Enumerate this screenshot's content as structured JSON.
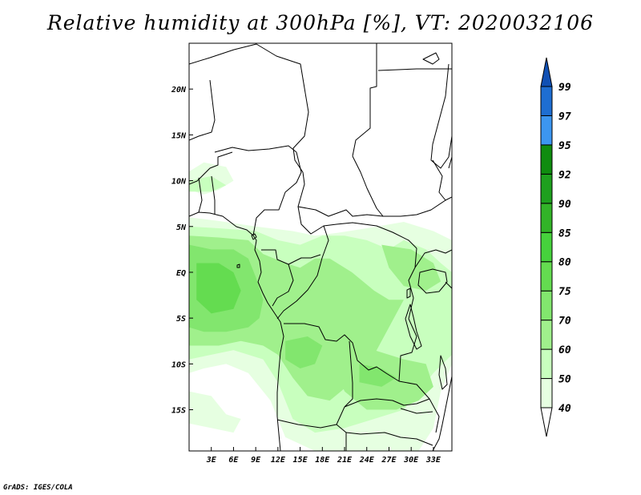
{
  "title": "Relative humidity at 300hPa [%], VT: 2020032106",
  "credit": "GrADS: IGES/COLA",
  "map": {
    "lon_range": [
      0,
      35.5
    ],
    "lat_range": [
      -19.5,
      25
    ],
    "lon_ticks": [
      {
        "value": 3,
        "label": "3E"
      },
      {
        "value": 6,
        "label": "6E"
      },
      {
        "value": 9,
        "label": "9E"
      },
      {
        "value": 12,
        "label": "12E"
      },
      {
        "value": 15,
        "label": "15E"
      },
      {
        "value": 18,
        "label": "18E"
      },
      {
        "value": 21,
        "label": "21E"
      },
      {
        "value": 24,
        "label": "24E"
      },
      {
        "value": 27,
        "label": "27E"
      },
      {
        "value": 30,
        "label": "30E"
      },
      {
        "value": 33,
        "label": "33E"
      }
    ],
    "lat_ticks": [
      {
        "value": 20,
        "label": "20N"
      },
      {
        "value": 15,
        "label": "15N"
      },
      {
        "value": 10,
        "label": "10N"
      },
      {
        "value": 5,
        "label": "5N"
      },
      {
        "value": 0,
        "label": "EQ"
      },
      {
        "value": -5,
        "label": "5S"
      },
      {
        "value": -10,
        "label": "10S"
      },
      {
        "value": -15,
        "label": "15S"
      }
    ]
  },
  "colorbar": {
    "labels": [
      "40",
      "50",
      "60",
      "70",
      "75",
      "80",
      "85",
      "90",
      "92",
      "95",
      "97",
      "99"
    ],
    "colors": [
      "#ffffff",
      "#e6ffe1",
      "#c8ffbe",
      "#a0f08c",
      "#82e66e",
      "#64dc50",
      "#46d23c",
      "#32b428",
      "#1ea01e",
      "#0f8c0f",
      "#3c96f0",
      "#1e6ed2",
      "#1050b4"
    ]
  },
  "humidity_patches": [
    {
      "level": 1,
      "regions": [
        [
          [
            0,
            6
          ],
          [
            4,
            5.6
          ],
          [
            9,
            5
          ],
          [
            14,
            4.5
          ],
          [
            17,
            4
          ],
          [
            20,
            4.3
          ],
          [
            24,
            4.8
          ],
          [
            29,
            5.5
          ],
          [
            33,
            4.5
          ],
          [
            35.5,
            3.5
          ],
          [
            35.5,
            -10
          ],
          [
            34,
            -13
          ],
          [
            33,
            -17
          ],
          [
            31,
            -19.5
          ],
          [
            17,
            -19.5
          ],
          [
            13,
            -18
          ],
          [
            11,
            -14
          ],
          [
            8,
            -11
          ],
          [
            5,
            -10
          ],
          [
            2,
            -10.5
          ],
          [
            0,
            -11
          ]
        ],
        [
          [
            0,
            -13
          ],
          [
            3,
            -13.5
          ],
          [
            5,
            -15.5
          ],
          [
            7,
            -16
          ],
          [
            6,
            -17.5
          ],
          [
            3,
            -17
          ],
          [
            0,
            -16.5
          ]
        ],
        [
          [
            0,
            11
          ],
          [
            2,
            12
          ],
          [
            5,
            11.5
          ],
          [
            6,
            10
          ],
          [
            4,
            9
          ],
          [
            2,
            8.5
          ],
          [
            0,
            9
          ]
        ]
      ]
    },
    {
      "level": 2,
      "regions": [
        [
          [
            0,
            5
          ],
          [
            4,
            4.8
          ],
          [
            9,
            4.5
          ],
          [
            12,
            3.5
          ],
          [
            15,
            3
          ],
          [
            18,
            4
          ],
          [
            21,
            4
          ],
          [
            24,
            3.5
          ],
          [
            27,
            2.5
          ],
          [
            29,
            3.5
          ],
          [
            32,
            2.5
          ],
          [
            34,
            1
          ],
          [
            35.5,
            0
          ],
          [
            35.5,
            -9
          ],
          [
            33,
            -11
          ],
          [
            31,
            -13
          ],
          [
            29,
            -15
          ],
          [
            25,
            -16
          ],
          [
            21,
            -17
          ],
          [
            17,
            -17.5
          ],
          [
            14,
            -16
          ],
          [
            12,
            -12
          ],
          [
            10,
            -9.5
          ],
          [
            8,
            -9
          ],
          [
            6,
            -8.5
          ],
          [
            3,
            -9
          ],
          [
            0,
            -9.5
          ]
        ],
        [
          [
            0,
            10
          ],
          [
            3,
            10.5
          ],
          [
            5,
            9.5
          ],
          [
            3,
            8.8
          ],
          [
            0,
            8.8
          ]
        ]
      ]
    },
    {
      "level": 3,
      "regions": [
        [
          [
            0,
            4
          ],
          [
            4,
            3.8
          ],
          [
            8,
            3.5
          ],
          [
            10,
            2
          ],
          [
            13,
            1
          ],
          [
            15,
            0.5
          ],
          [
            17,
            1.5
          ],
          [
            19,
            1.5
          ],
          [
            22,
            0
          ],
          [
            25,
            -2
          ],
          [
            27,
            -3
          ],
          [
            29,
            -3
          ],
          [
            27,
            -6
          ],
          [
            25,
            -9
          ],
          [
            22,
            -12
          ],
          [
            19,
            -14
          ],
          [
            16,
            -13.5
          ],
          [
            14,
            -11.5
          ],
          [
            12,
            -9
          ],
          [
            10,
            -8
          ],
          [
            7,
            -7.5
          ],
          [
            4,
            -8
          ],
          [
            0,
            -8
          ]
        ],
        [
          [
            21,
            -9
          ],
          [
            25,
            -8.5
          ],
          [
            29,
            -9.5
          ],
          [
            32,
            -10
          ],
          [
            33,
            -12.5
          ],
          [
            31,
            -14
          ],
          [
            28,
            -15
          ],
          [
            24,
            -15
          ],
          [
            21,
            -13
          ],
          [
            20,
            -11
          ]
        ],
        [
          [
            26,
            3
          ],
          [
            30,
            2.5
          ],
          [
            33,
            1
          ],
          [
            34,
            -1
          ],
          [
            32,
            -2
          ],
          [
            29,
            -1.5
          ],
          [
            27,
            0.5
          ]
        ]
      ]
    },
    {
      "level": 4,
      "regions": [
        [
          [
            0,
            3
          ],
          [
            3,
            2.5
          ],
          [
            6,
            2.5
          ],
          [
            8,
            1.5
          ],
          [
            9,
            -0.5
          ],
          [
            10,
            -3
          ],
          [
            9.5,
            -5
          ],
          [
            8,
            -6
          ],
          [
            5,
            -6.5
          ],
          [
            2,
            -6.5
          ],
          [
            0,
            -6
          ]
        ],
        [
          [
            13,
            -7.5
          ],
          [
            16,
            -7
          ],
          [
            18,
            -8
          ],
          [
            17,
            -10
          ],
          [
            15,
            -10.5
          ],
          [
            13,
            -9.5
          ]
        ],
        [
          [
            23,
            -10
          ],
          [
            26,
            -10.5
          ],
          [
            28,
            -11.5
          ],
          [
            26,
            -12.5
          ],
          [
            23,
            -12
          ]
        ]
      ]
    },
    {
      "level": 5,
      "regions": [
        [
          [
            1,
            1
          ],
          [
            4,
            1
          ],
          [
            6,
            0
          ],
          [
            7,
            -2
          ],
          [
            6,
            -4
          ],
          [
            3,
            -4.5
          ],
          [
            1,
            -3
          ]
        ]
      ]
    }
  ]
}
